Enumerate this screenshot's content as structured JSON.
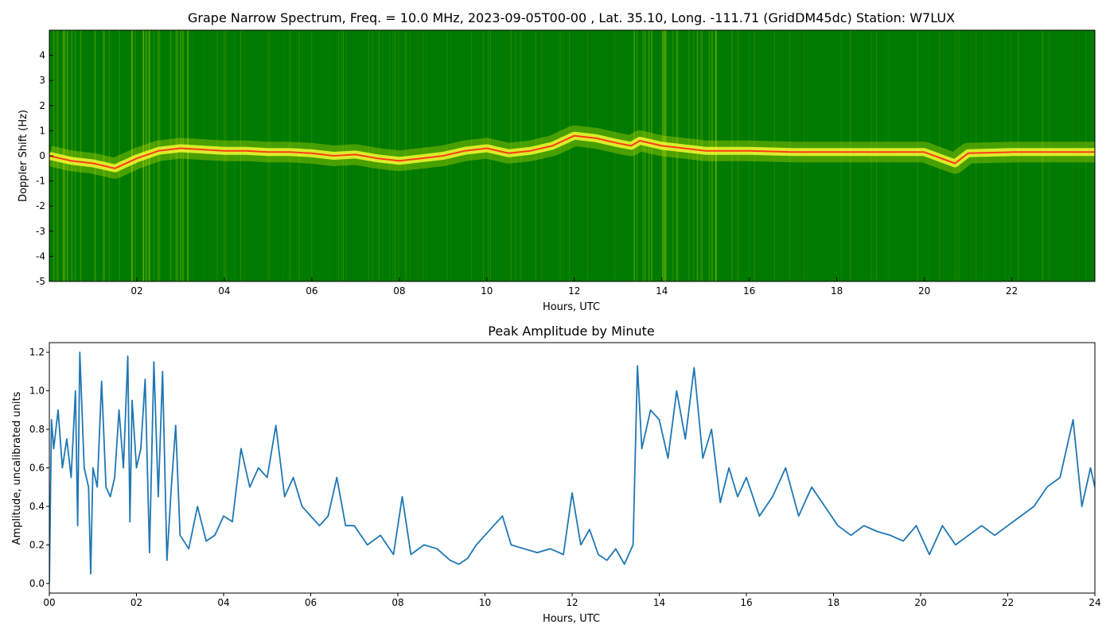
{
  "chart_data": [
    {
      "type": "heatmap",
      "title": "Grape Narrow Spectrum, Freq. = 10.0 MHz, 2023-09-05T00-00 , Lat.  35.10, Long. -111.71 (GridDM45dc) Station: W7LUX",
      "xlabel": "Hours, UTC",
      "ylabel": "Doppler Shift (Hz)",
      "xlim": [
        0,
        23.9
      ],
      "ylim": [
        -5,
        5
      ],
      "x_ticks": [
        "02",
        "04",
        "06",
        "08",
        "10",
        "12",
        "14",
        "16",
        "18",
        "20",
        "22"
      ],
      "x_tick_values": [
        2,
        4,
        6,
        8,
        10,
        12,
        14,
        16,
        18,
        20,
        22
      ],
      "y_ticks": [
        "4",
        "3",
        "2",
        "1",
        "0",
        "-1",
        "-2",
        "-3",
        "-4",
        "-5"
      ],
      "y_tick_values": [
        4,
        3,
        2,
        1,
        0,
        -1,
        -2,
        -3,
        -4,
        -5
      ],
      "colors": {
        "background": "#007a00",
        "mid": "#cfe600",
        "high": "#ffff33",
        "peak": "#ff3b1a"
      },
      "doppler_trace": {
        "x": [
          0,
          0.5,
          1,
          1.5,
          2,
          2.5,
          3,
          3.5,
          4,
          4.5,
          5,
          5.5,
          6,
          6.5,
          7,
          7.5,
          8,
          8.5,
          9,
          9.5,
          10,
          10.5,
          11,
          11.5,
          12,
          12.5,
          13,
          13.3,
          13.5,
          14,
          14.5,
          15,
          15.5,
          16,
          17,
          18,
          19,
          20,
          20.7,
          21,
          22,
          23,
          23.9
        ],
        "y": [
          0.0,
          -0.2,
          -0.3,
          -0.5,
          -0.1,
          0.2,
          0.3,
          0.25,
          0.2,
          0.2,
          0.15,
          0.15,
          0.1,
          0.0,
          0.05,
          -0.1,
          -0.2,
          -0.1,
          0.0,
          0.2,
          0.3,
          0.1,
          0.2,
          0.4,
          0.8,
          0.7,
          0.5,
          0.4,
          0.6,
          0.4,
          0.3,
          0.2,
          0.2,
          0.2,
          0.15,
          0.15,
          0.15,
          0.15,
          -0.3,
          0.1,
          0.15,
          0.15,
          0.15
        ]
      }
    },
    {
      "type": "line",
      "title": "Peak Amplitude by Minute",
      "xlabel": "Hours, UTC",
      "ylabel": "Amplitude, uncalibrated units",
      "xlim": [
        0,
        24
      ],
      "ylim": [
        -0.05,
        1.25
      ],
      "x_ticks": [
        "00",
        "02",
        "04",
        "06",
        "08",
        "10",
        "12",
        "14",
        "16",
        "18",
        "20",
        "22",
        "24"
      ],
      "x_tick_values": [
        0,
        2,
        4,
        6,
        8,
        10,
        12,
        14,
        16,
        18,
        20,
        22,
        24
      ],
      "y_ticks": [
        "0.0",
        "0.2",
        "0.4",
        "0.6",
        "0.8",
        "1.0",
        "1.2"
      ],
      "y_tick_values": [
        0.0,
        0.2,
        0.4,
        0.6,
        0.8,
        1.0,
        1.2
      ],
      "line_color": "#1f77b4",
      "series": [
        {
          "x": [
            0,
            0.05,
            0.1,
            0.2,
            0.3,
            0.4,
            0.5,
            0.6,
            0.65,
            0.7,
            0.8,
            0.9,
            0.95,
            1.0,
            1.1,
            1.2,
            1.3,
            1.4,
            1.5,
            1.6,
            1.7,
            1.8,
            1.85,
            1.9,
            2.0,
            2.1,
            2.2,
            2.3,
            2.4,
            2.5,
            2.6,
            2.7,
            2.8,
            2.9,
            3.0,
            3.2,
            3.4,
            3.6,
            3.8,
            4.0,
            4.2,
            4.4,
            4.6,
            4.8,
            5.0,
            5.2,
            5.4,
            5.6,
            5.8,
            6.0,
            6.2,
            6.4,
            6.6,
            6.8,
            7.0,
            7.3,
            7.6,
            7.9,
            8.1,
            8.3,
            8.6,
            8.9,
            9.2,
            9.4,
            9.6,
            9.8,
            10.0,
            10.2,
            10.4,
            10.6,
            10.9,
            11.2,
            11.5,
            11.8,
            12.0,
            12.2,
            12.4,
            12.6,
            12.8,
            13.0,
            13.2,
            13.4,
            13.5,
            13.6,
            13.8,
            14.0,
            14.2,
            14.4,
            14.6,
            14.8,
            15.0,
            15.2,
            15.4,
            15.6,
            15.8,
            16.0,
            16.3,
            16.6,
            16.9,
            17.2,
            17.5,
            17.8,
            18.1,
            18.4,
            18.7,
            19.0,
            19.3,
            19.6,
            19.9,
            20.2,
            20.5,
            20.8,
            21.1,
            21.4,
            21.7,
            22.0,
            22.3,
            22.6,
            22.9,
            23.2,
            23.5,
            23.7,
            23.9,
            24.0
          ],
          "values": [
            0.0,
            0.85,
            0.7,
            0.9,
            0.6,
            0.75,
            0.55,
            1.0,
            0.3,
            1.2,
            0.6,
            0.5,
            0.05,
            0.6,
            0.5,
            1.05,
            0.5,
            0.45,
            0.55,
            0.9,
            0.6,
            1.18,
            0.32,
            0.95,
            0.6,
            0.7,
            1.06,
            0.16,
            1.15,
            0.45,
            1.1,
            0.12,
            0.5,
            0.82,
            0.25,
            0.18,
            0.4,
            0.22,
            0.25,
            0.35,
            0.32,
            0.7,
            0.5,
            0.6,
            0.55,
            0.82,
            0.45,
            0.55,
            0.4,
            0.35,
            0.3,
            0.35,
            0.55,
            0.3,
            0.3,
            0.2,
            0.25,
            0.15,
            0.45,
            0.15,
            0.2,
            0.18,
            0.12,
            0.1,
            0.13,
            0.2,
            0.25,
            0.3,
            0.35,
            0.2,
            0.18,
            0.16,
            0.18,
            0.15,
            0.47,
            0.2,
            0.28,
            0.15,
            0.12,
            0.18,
            0.1,
            0.2,
            1.13,
            0.7,
            0.9,
            0.85,
            0.65,
            1.0,
            0.75,
            1.12,
            0.65,
            0.8,
            0.42,
            0.6,
            0.45,
            0.55,
            0.35,
            0.45,
            0.6,
            0.35,
            0.5,
            0.4,
            0.3,
            0.25,
            0.3,
            0.27,
            0.25,
            0.22,
            0.3,
            0.15,
            0.3,
            0.2,
            0.25,
            0.3,
            0.25,
            0.3,
            0.35,
            0.4,
            0.5,
            0.55,
            0.85,
            0.4,
            0.6,
            0.5
          ]
        }
      ]
    }
  ]
}
